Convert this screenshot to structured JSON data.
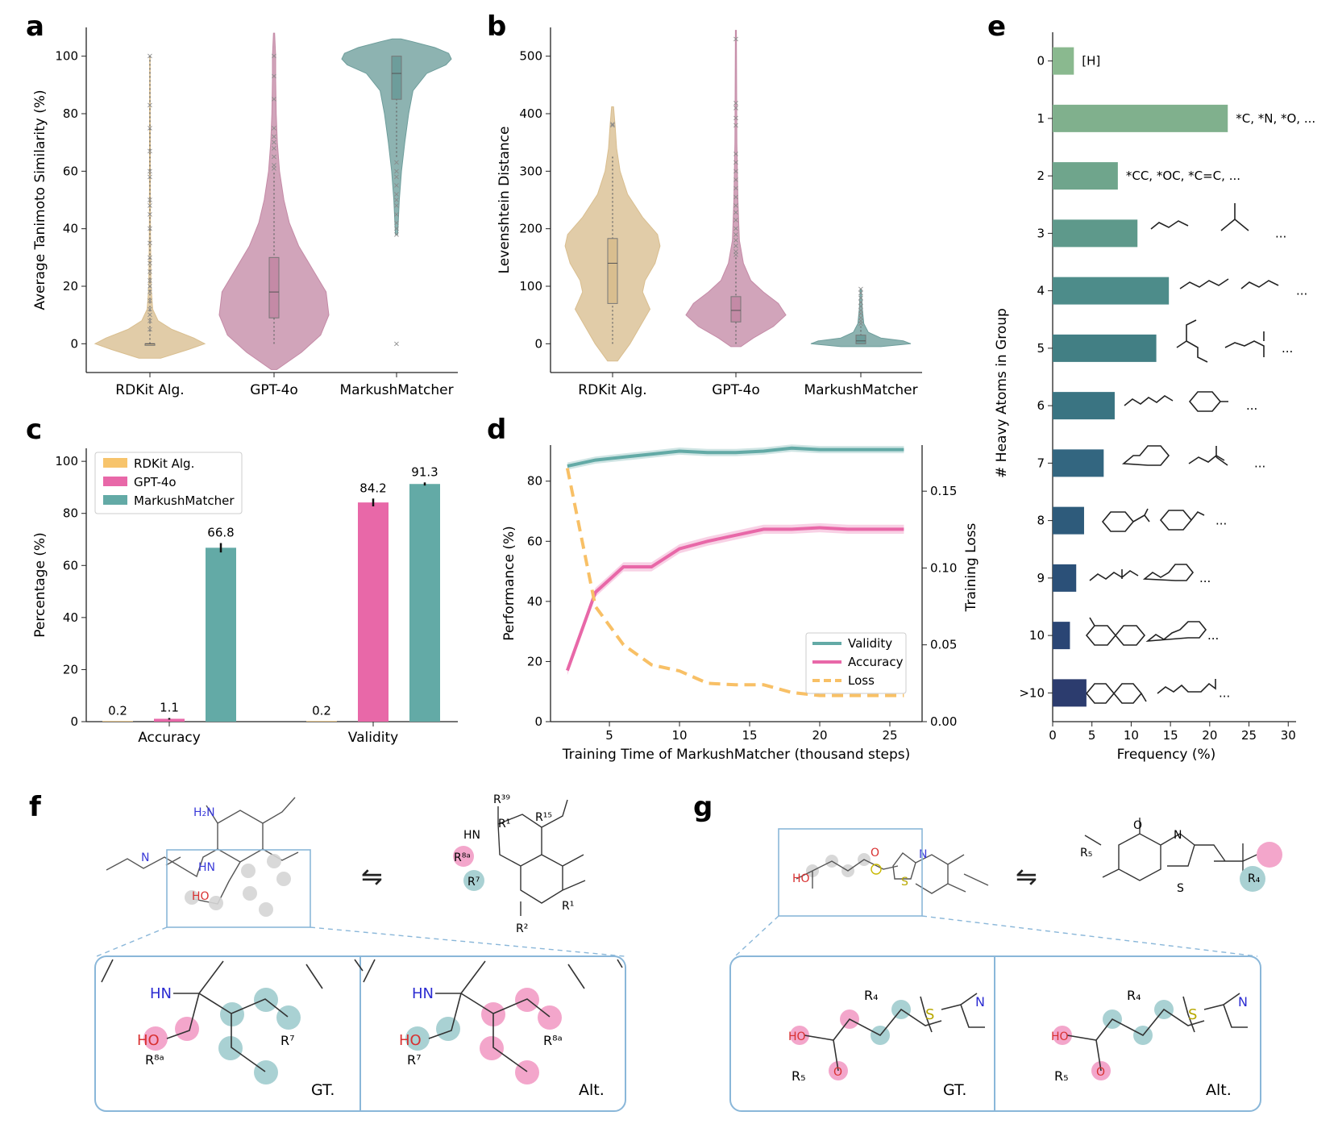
{
  "panel_labels": [
    "a",
    "b",
    "c",
    "d",
    "e",
    "f",
    "g"
  ],
  "colors": {
    "rdkit": "#d9be8f",
    "gpt": "#c48aa6",
    "mm": "#6d9d9b",
    "rdkit_bar": "#f7c46c",
    "gpt_bar": "#e868a8",
    "mm_bar": "#63aaa6",
    "loss": "#f8c066",
    "pink": "#f3a6cb",
    "teal": "#a9d1d3",
    "box": "#8ab7d9"
  },
  "chart_data": [
    {
      "id": "a",
      "type": "violin",
      "title": "",
      "xlabel": "",
      "ylabel": "Average Tanimoto Similarity (%)",
      "ylim": [
        -10,
        110
      ],
      "yticks": [
        0,
        20,
        40,
        60,
        80,
        100
      ],
      "categories": [
        "RDKit Alg.",
        "GPT-4o",
        "MarkushMatcher"
      ],
      "series": [
        {
          "name": "RDKit Alg.",
          "median": 0,
          "q1": 0,
          "q3": 0,
          "min": 0,
          "max": 100,
          "outliers": [
            100,
            83,
            75,
            67,
            60,
            58,
            50,
            48,
            45,
            40,
            35,
            30,
            28,
            25,
            22,
            20,
            18,
            15,
            12,
            10,
            8,
            5
          ],
          "density": [
            [
              -5,
              0.2
            ],
            [
              -2,
              0.7
            ],
            [
              0,
              1.0
            ],
            [
              2,
              0.8
            ],
            [
              5,
              0.4
            ],
            [
              8,
              0.15
            ],
            [
              12,
              0.05
            ],
            [
              20,
              0.02
            ],
            [
              40,
              0.01
            ],
            [
              100,
              0.005
            ]
          ]
        },
        {
          "name": "GPT-4o",
          "median": 18,
          "q1": 9,
          "q3": 30,
          "min": 0,
          "max": 60,
          "outliers": [
            100,
            93,
            85,
            75,
            72,
            70,
            68,
            65,
            62,
            61
          ],
          "density": [
            [
              -9,
              0.05
            ],
            [
              -3,
              0.5
            ],
            [
              3,
              0.85
            ],
            [
              10,
              1.0
            ],
            [
              18,
              0.95
            ],
            [
              26,
              0.7
            ],
            [
              34,
              0.45
            ],
            [
              42,
              0.28
            ],
            [
              50,
              0.18
            ],
            [
              60,
              0.1
            ],
            [
              70,
              0.06
            ],
            [
              80,
              0.04
            ],
            [
              92,
              0.03
            ],
            [
              100,
              0.03
            ],
            [
              108,
              0.01
            ]
          ]
        },
        {
          "name": "MarkushMatcher",
          "median": 94,
          "q1": 85,
          "q3": 100,
          "min": 65,
          "max": 100,
          "outliers": [
            63,
            60,
            58,
            55,
            52,
            50,
            48,
            45,
            42,
            40,
            38,
            0
          ],
          "density": [
            [
              38,
              0.02
            ],
            [
              50,
              0.05
            ],
            [
              60,
              0.09
            ],
            [
              70,
              0.15
            ],
            [
              80,
              0.22
            ],
            [
              88,
              0.3
            ],
            [
              94,
              0.55
            ],
            [
              97,
              0.9
            ],
            [
              99,
              1.0
            ],
            [
              101,
              0.95
            ],
            [
              103,
              0.7
            ],
            [
              105,
              0.3
            ],
            [
              106,
              0.08
            ]
          ]
        }
      ]
    },
    {
      "id": "b",
      "type": "violin",
      "title": "",
      "xlabel": "",
      "ylabel": "Levenshtein Distance",
      "ylim": [
        -50,
        550
      ],
      "yticks": [
        0,
        100,
        200,
        300,
        400,
        500
      ],
      "categories": [
        "RDKit Alg.",
        "GPT-4o",
        "MarkushMatcher"
      ],
      "series": [
        {
          "name": "RDKit Alg.",
          "median": 140,
          "q1": 70,
          "q3": 183,
          "min": 0,
          "max": 328,
          "outliers": [
            382,
            380
          ],
          "density": [
            [
              -30,
              0.1
            ],
            [
              0,
              0.35
            ],
            [
              30,
              0.55
            ],
            [
              60,
              0.75
            ],
            [
              90,
              0.6
            ],
            [
              110,
              0.65
            ],
            [
              140,
              0.85
            ],
            [
              170,
              0.95
            ],
            [
              190,
              0.9
            ],
            [
              220,
              0.6
            ],
            [
              260,
              0.3
            ],
            [
              300,
              0.15
            ],
            [
              340,
              0.08
            ],
            [
              380,
              0.05
            ],
            [
              412,
              0.02
            ]
          ]
        },
        {
          "name": "GPT-4o",
          "median": 58,
          "q1": 38,
          "q3": 82,
          "min": 0,
          "max": 150,
          "outliers": [
            530,
            418,
            410,
            392,
            380,
            330,
            315,
            300,
            285,
            270,
            255,
            240,
            228,
            215,
            200,
            190,
            180,
            170,
            160,
            155
          ],
          "density": [
            [
              -5,
              0.1
            ],
            [
              10,
              0.35
            ],
            [
              30,
              0.75
            ],
            [
              50,
              1.0
            ],
            [
              70,
              0.85
            ],
            [
              90,
              0.55
            ],
            [
              110,
              0.3
            ],
            [
              140,
              0.15
            ],
            [
              180,
              0.07
            ],
            [
              250,
              0.04
            ],
            [
              350,
              0.02
            ],
            [
              450,
              0.015
            ],
            [
              545,
              0.01
            ]
          ]
        },
        {
          "name": "MarkushMatcher",
          "median": 5,
          "q1": 0,
          "q3": 15,
          "min": 0,
          "max": 30,
          "outliers": [
            95,
            88,
            80,
            72,
            65,
            58,
            52,
            45,
            40,
            35
          ],
          "density": [
            [
              -5,
              0.4
            ],
            [
              0,
              1.0
            ],
            [
              5,
              0.85
            ],
            [
              10,
              0.4
            ],
            [
              20,
              0.15
            ],
            [
              35,
              0.06
            ],
            [
              60,
              0.03
            ],
            [
              95,
              0.01
            ]
          ]
        }
      ]
    },
    {
      "id": "c",
      "type": "bar",
      "title": "",
      "xlabel": "",
      "ylabel": "Percentage (%)",
      "ylim": [
        0,
        105
      ],
      "yticks": [
        0,
        20,
        40,
        60,
        80,
        100
      ],
      "categories": [
        "Accuracy",
        "Validity"
      ],
      "legend": "top-left",
      "series": [
        {
          "name": "RDKit Alg.",
          "values": [
            0.2,
            0.2
          ],
          "labels": [
            "0.2",
            "0.2"
          ],
          "errors": [
            0,
            0
          ]
        },
        {
          "name": "GPT-4o",
          "values": [
            1.1,
            84.2
          ],
          "labels": [
            "1.1",
            "84.2"
          ],
          "errors": [
            0.3,
            1.5
          ]
        },
        {
          "name": "MarkushMatcher",
          "values": [
            66.8,
            91.3
          ],
          "labels": [
            "66.8",
            "91.3"
          ],
          "errors": [
            1.8,
            0.6
          ]
        }
      ]
    },
    {
      "id": "d",
      "type": "line",
      "title": "",
      "xlabel": "Training Time of MarkushMatcher (thousand steps)",
      "ylabel": "Performance (%)",
      "y2label": "Training Loss",
      "xlim": [
        0.8,
        27.3
      ],
      "ylim": [
        0,
        92
      ],
      "y2lim": [
        0,
        0.18
      ],
      "xticks": [
        5,
        10,
        15,
        20,
        25
      ],
      "yticks": [
        0,
        20,
        40,
        60,
        80
      ],
      "y2ticks": [
        "0.00",
        "0.05",
        "0.10",
        "0.15"
      ],
      "legend": "bottom-right",
      "series": [
        {
          "name": "Validity",
          "axis": "left",
          "x": [
            2,
            4,
            6,
            8,
            10,
            12,
            14,
            16,
            18,
            20,
            22,
            24,
            26
          ],
          "y": [
            85,
            87,
            88,
            89,
            90,
            89.5,
            89.5,
            90,
            91,
            90.5,
            90.5,
            90.5,
            90.5
          ],
          "band": 1.2
        },
        {
          "name": "Accuracy",
          "axis": "left",
          "x": [
            2,
            4,
            6,
            8,
            10,
            12,
            14,
            16,
            18,
            20,
            22,
            24,
            26
          ],
          "y": [
            17,
            43,
            51.5,
            51.5,
            57.5,
            60,
            62,
            64,
            64,
            64.5,
            64,
            64,
            64
          ],
          "band": 1.5
        },
        {
          "name": "Loss",
          "axis": "right",
          "x": [
            2,
            4,
            6,
            8,
            10,
            12,
            14,
            16,
            18,
            20,
            22,
            24,
            26
          ],
          "y": [
            0.165,
            0.075,
            0.05,
            0.037,
            0.033,
            0.025,
            0.024,
            0.024,
            0.019,
            0.017,
            0.017,
            0.017,
            0.017
          ],
          "dashed": true
        }
      ]
    },
    {
      "id": "e",
      "type": "bar",
      "orientation": "horizontal",
      "title": "",
      "xlabel": "Frequency (%)",
      "ylabel": "# Heavy Atoms in Group",
      "xlim": [
        0,
        31
      ],
      "xticks": [
        0,
        5,
        10,
        15,
        20,
        25,
        30
      ],
      "categories": [
        "0",
        "1",
        "2",
        "3",
        "4",
        "5",
        "6",
        "7",
        "8",
        "9",
        "10",
        ">10"
      ],
      "values": [
        2.7,
        22.3,
        8.3,
        10.8,
        14.8,
        13.2,
        7.9,
        6.5,
        4.0,
        3.0,
        2.2,
        4.3
      ],
      "bar_colors": [
        "#8ab98f",
        "#80b08d",
        "#6fa58c",
        "#5e998b",
        "#4d8c8a",
        "#427f84",
        "#3a7482",
        "#336680",
        "#2e5b7b",
        "#2b5078",
        "#2a4574",
        "#2c3c6e"
      ],
      "annotations": [
        "[H]",
        "*C, *N, *O, ...",
        "*CC, *OC, *C=C, ...",
        "...",
        "...",
        "...",
        "...",
        "...",
        "...",
        "...",
        "...",
        "..."
      ]
    }
  ],
  "panel_f": {
    "arrow": "⇋",
    "mol_labels": {
      "nh2": "H₂N",
      "n": "N",
      "hn": "HN",
      "ho": "HO"
    },
    "right_labels": {
      "r39": "R³⁹",
      "r1": "R¹",
      "r15": "R¹⁵",
      "hn": "HN",
      "r8a": "R⁸ᵃ",
      "r7": "R⁷",
      "r1b": "R¹",
      "r2": "R²"
    },
    "gt": {
      "hn": "HN",
      "ho": "HO",
      "r8a": "R⁸ᵃ",
      "r7": "R⁷",
      "tag": "GT."
    },
    "alt": {
      "hn": "HN",
      "ho": "HO",
      "r7": "R⁷",
      "r8a": "R⁸ᵃ",
      "tag": "Alt."
    }
  },
  "panel_g": {
    "arrow": "⇋",
    "mol_labels": {
      "ho": "HO",
      "o": "O",
      "s": "S",
      "n": "N"
    },
    "right_labels": {
      "r5": "R₅",
      "o": "O",
      "n": "N",
      "s": "S",
      "r4": "R₄"
    },
    "gt": {
      "r4": "R₄",
      "ho": "HO",
      "o": "O",
      "s": "S",
      "n": "N",
      "r5": "R₅",
      "tag": "GT."
    },
    "alt": {
      "r4": "R₄",
      "ho": "HO",
      "o": "O",
      "s": "S",
      "n": "N",
      "r5": "R₅",
      "tag": "Alt."
    }
  }
}
